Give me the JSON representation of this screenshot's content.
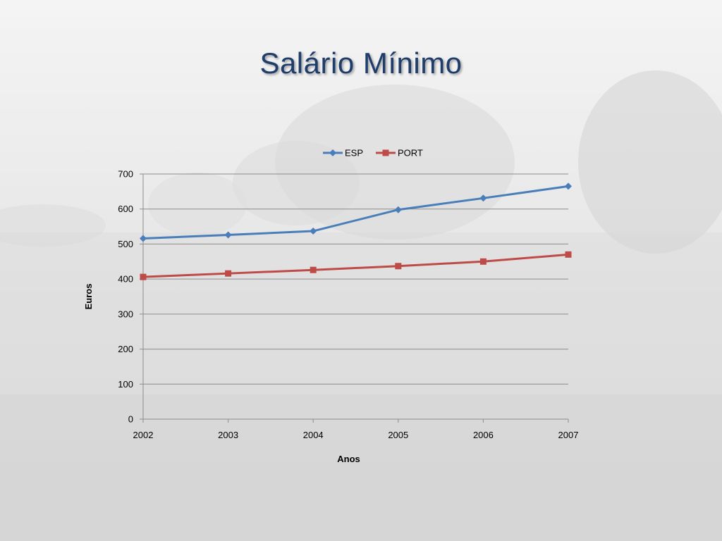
{
  "slide": {
    "title": "Salário Mínimo"
  },
  "colors": {
    "esp": "#4a7ebb",
    "port": "#be4b48",
    "grid": "#8c8c8c",
    "title": "#1f3d6b"
  },
  "chart_data": {
    "type": "line",
    "title": "",
    "xlabel": "Anos",
    "ylabel": "Euros",
    "categories": [
      "2002",
      "2003",
      "2004",
      "2005",
      "2006",
      "2007"
    ],
    "ylim": [
      0,
      700
    ],
    "yticks": [
      0,
      100,
      200,
      300,
      400,
      500,
      600,
      700
    ],
    "grid": true,
    "legend": "top",
    "series": [
      {
        "name": "ESP",
        "marker": "diamond",
        "color": "#4a7ebb",
        "values": [
          516,
          526,
          537,
          598,
          631,
          665
        ]
      },
      {
        "name": "PORT",
        "marker": "square",
        "color": "#be4b48",
        "values": [
          406,
          416,
          426,
          437,
          450,
          470
        ]
      }
    ]
  }
}
